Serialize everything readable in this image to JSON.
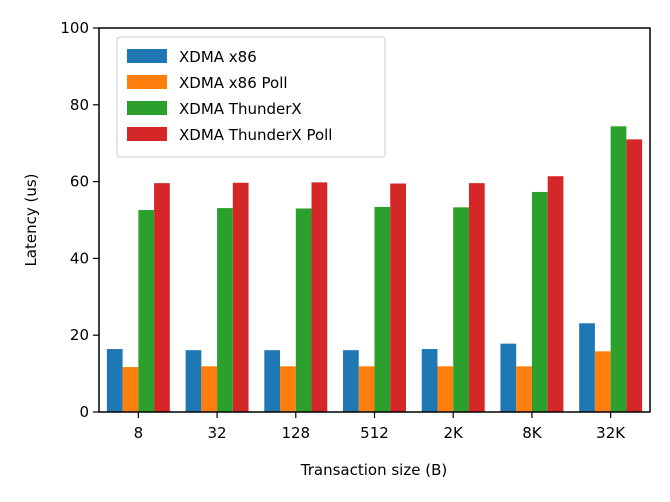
{
  "chart_data": {
    "type": "bar",
    "xlabel": "Transaction size (B)",
    "ylabel": "Latency (us)",
    "categories": [
      "8",
      "32",
      "128",
      "512",
      "2K",
      "8K",
      "32K"
    ],
    "ylim": [
      0,
      100
    ],
    "yticks": [
      "0",
      "20",
      "40",
      "60",
      "80",
      "100"
    ],
    "grid": false,
    "legend_position": "top-left",
    "series": [
      {
        "name": "XDMA x86",
        "color": "#1f77b4",
        "values": [
          16.4,
          16.1,
          16.1,
          16.1,
          16.4,
          17.8,
          23.1
        ]
      },
      {
        "name": "XDMA x86 Poll",
        "color": "#ff7f0e",
        "values": [
          11.7,
          11.9,
          11.9,
          11.9,
          11.9,
          11.9,
          15.8
        ]
      },
      {
        "name": "XDMA ThunderX",
        "color": "#2ca02c",
        "values": [
          52.6,
          53.1,
          53.0,
          53.4,
          53.3,
          57.3,
          74.4
        ]
      },
      {
        "name": "XDMA ThunderX Poll",
        "color": "#d62728",
        "values": [
          59.6,
          59.7,
          59.8,
          59.5,
          59.6,
          61.4,
          71.0
        ]
      }
    ]
  }
}
